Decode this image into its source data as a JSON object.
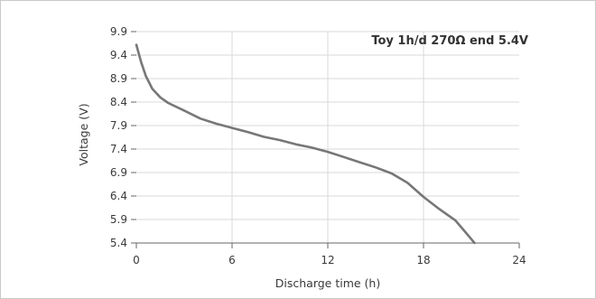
{
  "chart_data": {
    "type": "line",
    "title": "",
    "annotation": "Toy 1h/d 270Ω end 5.4V",
    "xlabel": "Discharge time (h)",
    "ylabel": "Voltage (V)",
    "xlim": [
      0,
      24
    ],
    "ylim": [
      5.4,
      9.9
    ],
    "xticks": [
      0,
      6,
      12,
      18,
      24
    ],
    "yticks": [
      5.4,
      5.9,
      6.4,
      6.9,
      7.4,
      7.9,
      8.4,
      8.9,
      9.4,
      9.9
    ],
    "grid": true,
    "colors": {
      "line": "#777777",
      "grid": "#d9d9d9",
      "axis": "#666666"
    },
    "series": [
      {
        "x": [
          0,
          0.3,
          0.6,
          1.0,
          1.5,
          2.0,
          3.0,
          4.0,
          5.0,
          6.0,
          7.0,
          8.0,
          9.0,
          10.0,
          11.0,
          12.0,
          13.0,
          14.0,
          15.0,
          16.0,
          17.0,
          18.0,
          19.0,
          20.0,
          20.5,
          21.0,
          21.2
        ],
        "values": [
          9.62,
          9.25,
          8.95,
          8.68,
          8.5,
          8.38,
          8.22,
          8.05,
          7.94,
          7.85,
          7.76,
          7.66,
          7.59,
          7.5,
          7.43,
          7.34,
          7.23,
          7.12,
          7.01,
          6.88,
          6.68,
          6.38,
          6.12,
          5.88,
          5.68,
          5.48,
          5.4
        ]
      }
    ]
  }
}
